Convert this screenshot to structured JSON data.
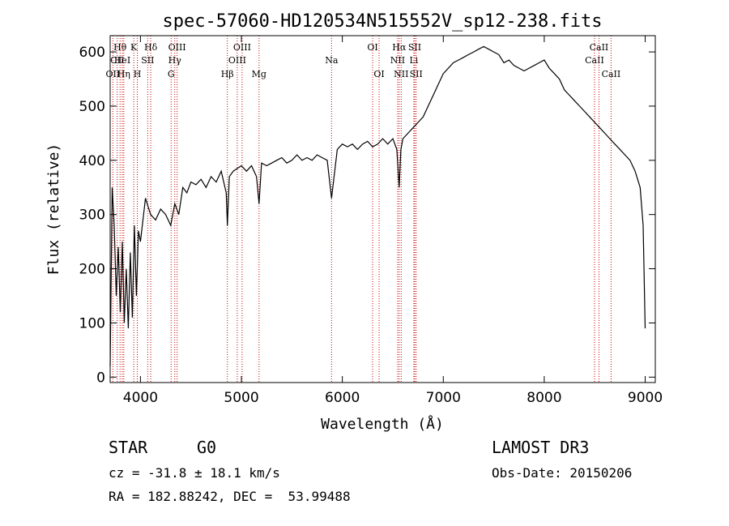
{
  "chart_data": {
    "type": "line",
    "title": "spec-57060-HD120534N515552V_sp12-238.fits",
    "xlabel": "Wavelength (Å)",
    "ylabel": "Flux (relative)",
    "xlim": [
      3700,
      9100
    ],
    "ylim": [
      -10,
      630
    ],
    "x_ticks": [
      4000,
      5000,
      6000,
      7000,
      8000,
      9000
    ],
    "y_ticks": [
      0,
      100,
      200,
      300,
      400,
      500,
      600
    ],
    "line_color": "#000000",
    "marker_color": "#cc0000",
    "series": [
      {
        "name": "spectrum",
        "x": [
          3700,
          3720,
          3740,
          3760,
          3780,
          3800,
          3820,
          3840,
          3860,
          3880,
          3900,
          3920,
          3940,
          3960,
          3980,
          4000,
          4050,
          4100,
          4150,
          4200,
          4250,
          4300,
          4340,
          4380,
          4420,
          4460,
          4500,
          4550,
          4600,
          4650,
          4700,
          4750,
          4800,
          4850,
          4861,
          4880,
          4920,
          4960,
          5000,
          5050,
          5100,
          5150,
          5175,
          5200,
          5250,
          5300,
          5350,
          5400,
          5450,
          5500,
          5550,
          5600,
          5650,
          5700,
          5750,
          5800,
          5850,
          5893,
          5950,
          6000,
          6050,
          6100,
          6150,
          6200,
          6250,
          6300,
          6350,
          6400,
          6450,
          6500,
          6540,
          6563,
          6580,
          6600,
          6650,
          6700,
          6750,
          6800,
          6850,
          6900,
          6950,
          7000,
          7050,
          7100,
          7150,
          7200,
          7250,
          7300,
          7350,
          7400,
          7450,
          7500,
          7550,
          7600,
          7650,
          7700,
          7750,
          7800,
          7850,
          7900,
          7950,
          8000,
          8050,
          8100,
          8150,
          8200,
          8250,
          8300,
          8350,
          8400,
          8450,
          8500,
          8550,
          8600,
          8650,
          8700,
          8750,
          8800,
          8850,
          8900,
          8950,
          8980,
          9000
        ],
        "y": [
          20,
          350,
          280,
          150,
          240,
          120,
          250,
          100,
          200,
          90,
          230,
          110,
          280,
          150,
          270,
          250,
          330,
          300,
          290,
          310,
          300,
          280,
          320,
          300,
          350,
          340,
          360,
          355,
          365,
          350,
          370,
          360,
          380,
          340,
          280,
          370,
          380,
          385,
          390,
          380,
          390,
          370,
          320,
          395,
          390,
          395,
          400,
          405,
          395,
          400,
          410,
          400,
          405,
          400,
          410,
          405,
          400,
          330,
          420,
          430,
          425,
          430,
          420,
          430,
          435,
          425,
          430,
          440,
          430,
          440,
          420,
          350,
          420,
          440,
          450,
          460,
          470,
          480,
          500,
          520,
          540,
          560,
          570,
          580,
          585,
          590,
          595,
          600,
          605,
          610,
          605,
          600,
          595,
          580,
          585,
          575,
          570,
          565,
          570,
          575,
          580,
          585,
          570,
          560,
          550,
          530,
          520,
          510,
          500,
          490,
          480,
          470,
          460,
          450,
          440,
          430,
          420,
          410,
          400,
          380,
          350,
          280,
          90
        ]
      }
    ],
    "markers": [
      {
        "name": "OII",
        "x": 3727,
        "row": 3
      },
      {
        "name": "Hθ",
        "x": 3798,
        "row": 1
      },
      {
        "name": "CII",
        "x": 3770,
        "row": 2
      },
      {
        "name": "HeI",
        "x": 3820,
        "row": 2
      },
      {
        "name": "Hη",
        "x": 3835,
        "row": 3
      },
      {
        "name": "K",
        "x": 3934,
        "row": 1
      },
      {
        "name": "H",
        "x": 3969,
        "row": 3
      },
      {
        "name": "SII",
        "x": 4072,
        "row": 2
      },
      {
        "name": "Hδ",
        "x": 4102,
        "row": 1
      },
      {
        "name": "G",
        "x": 4304,
        "row": 3
      },
      {
        "name": "Hγ",
        "x": 4340,
        "row": 2
      },
      {
        "name": "OIII",
        "x": 4363,
        "row": 1
      },
      {
        "name": "Hβ",
        "x": 4861,
        "row": 3
      },
      {
        "name": "OIII",
        "x": 4959,
        "row": 2
      },
      {
        "name": "OIII",
        "x": 5007,
        "row": 1
      },
      {
        "name": "Mg",
        "x": 5175,
        "row": 3
      },
      {
        "name": "Na",
        "x": 5893,
        "row": 2
      },
      {
        "name": "OI",
        "x": 6300,
        "row": 1
      },
      {
        "name": "OI",
        "x": 6364,
        "row": 3
      },
      {
        "name": "NII",
        "x": 6548,
        "row": 2
      },
      {
        "name": "Hα",
        "x": 6563,
        "row": 1
      },
      {
        "name": "NII",
        "x": 6583,
        "row": 3
      },
      {
        "name": "Li",
        "x": 6708,
        "row": 2
      },
      {
        "name": "SII",
        "x": 6717,
        "row": 1
      },
      {
        "name": "SII",
        "x": 6731,
        "row": 3
      },
      {
        "name": "CaII",
        "x": 8498,
        "row": 2
      },
      {
        "name": "CaII",
        "x": 8542,
        "row": 1
      },
      {
        "name": "CaII",
        "x": 8662,
        "row": 3
      }
    ]
  },
  "footer": {
    "object_class": "STAR",
    "subclass": "G0",
    "survey": "LAMOST DR3",
    "redshift": "cz = -31.8 ± 18.1 km/s",
    "obs_date": "Obs-Date: 20150206",
    "coords": "RA = 182.88242, DEC =  53.99488"
  }
}
